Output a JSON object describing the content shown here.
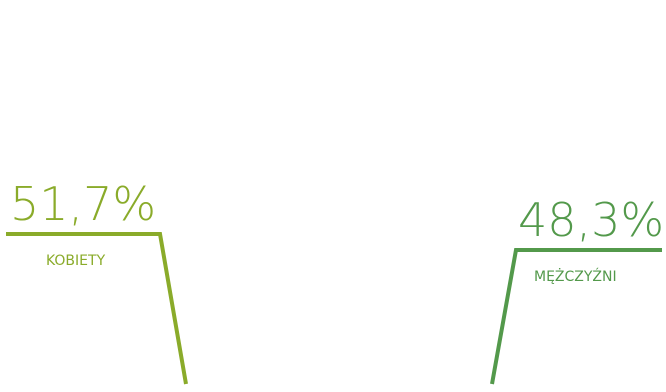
{
  "chart_data": {
    "type": "pictogram",
    "series": [
      {
        "label": "KOBIETY",
        "value_text": "51,7%",
        "value": 51.7,
        "figure": "woman",
        "color": "#8aab2a",
        "empty_color": "#c6c7c6"
      },
      {
        "label": "MĘŻCZYŹNI",
        "value_text": "48,3%",
        "value": 48.3,
        "figure": "man",
        "color": "#53994b",
        "empty_color": "#c6c7c6"
      }
    ]
  }
}
